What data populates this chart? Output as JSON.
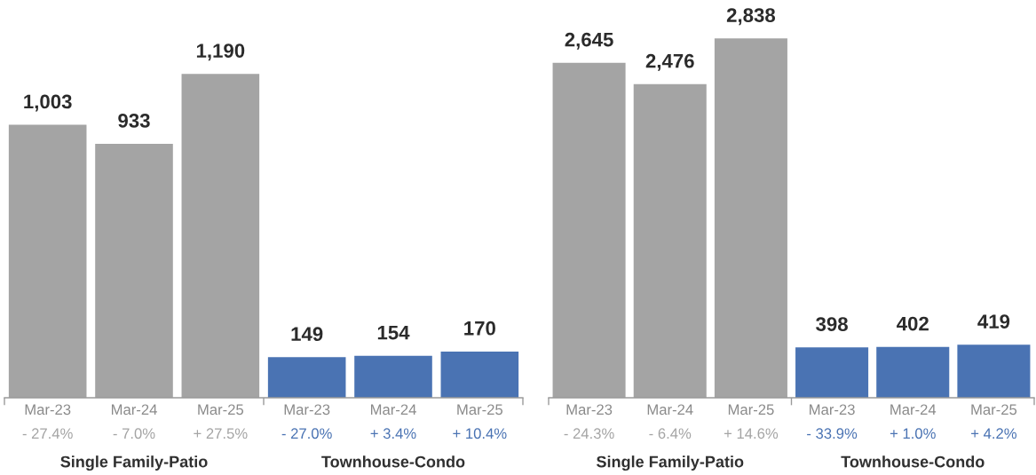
{
  "chart_data": [
    {
      "type": "bar",
      "categories": [
        "Mar-23",
        "Mar-24",
        "Mar-25",
        "Mar-23",
        "Mar-24",
        "Mar-25"
      ],
      "series": [
        {
          "color": "#a4a4a4",
          "values": [
            1003,
            933,
            1190,
            null,
            null,
            null
          ],
          "value_labels": [
            "1,003",
            "933",
            "1,190",
            null,
            null,
            null
          ]
        },
        {
          "color": "#4a73b3",
          "values": [
            null,
            null,
            null,
            149,
            154,
            170
          ],
          "value_labels": [
            null,
            null,
            null,
            "149",
            "154",
            "170"
          ]
        }
      ],
      "annotations": [
        "- 27.4%",
        "- 7.0%",
        "+ 27.5%",
        "- 27.0%",
        "+ 3.4%",
        "+ 10.4%",
        "Single Family-Patio",
        "Townhouse-Condo"
      ],
      "tick_labels": "x"
    },
    {
      "type": "bar",
      "categories": [
        "Mar-23",
        "Mar-24",
        "Mar-25",
        "Mar-23",
        "Mar-24",
        "Mar-25"
      ],
      "series": [
        {
          "color": "#a4a4a4",
          "values": [
            2645,
            2476,
            2838,
            null,
            null,
            null
          ],
          "value_labels": [
            "2,645",
            "2,476",
            "2,838",
            null,
            null,
            null
          ]
        },
        {
          "color": "#4a73b3",
          "values": [
            null,
            null,
            null,
            398,
            402,
            419
          ],
          "value_labels": [
            null,
            null,
            null,
            "398",
            "402",
            "419"
          ]
        }
      ],
      "annotations": [
        "- 24.3%",
        "- 6.4%",
        "+ 14.6%",
        "- 33.9%",
        "+ 1.0%",
        "+ 4.2%",
        "Single Family-Patio",
        "Townhouse-Condo"
      ],
      "tick_labels": "x"
    }
  ]
}
